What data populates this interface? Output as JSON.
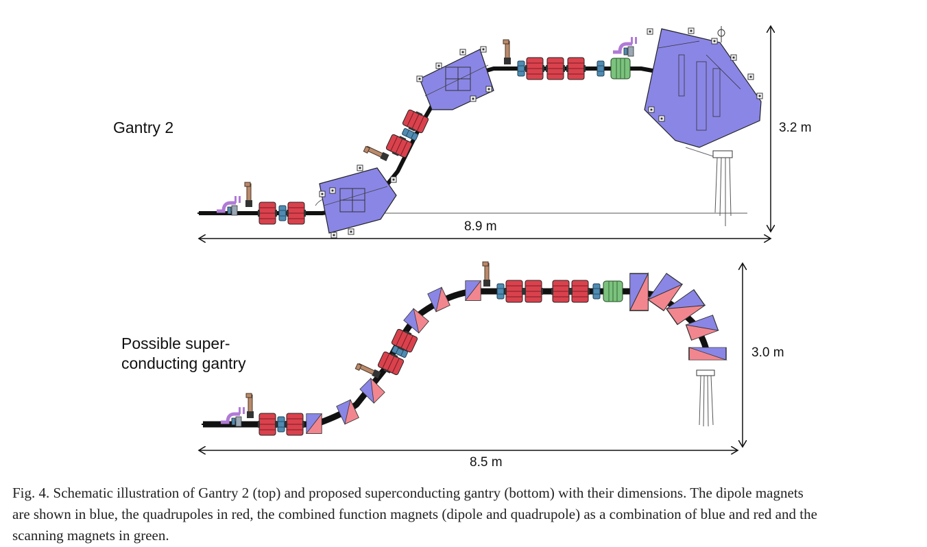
{
  "top_diagram": {
    "title": "Gantry 2",
    "width_label": "8.9 m",
    "height_label": "3.2 m"
  },
  "bottom_diagram": {
    "title_line1": "Possible super-",
    "title_line2": "conducting gantry",
    "width_label": "8.5 m",
    "height_label": "3.0 m"
  },
  "caption": {
    "line1": "Fig. 4.  Schematic illustration of Gantry 2 (top) and proposed superconducting gantry (bottom) with their dimensions. The dipole magnets",
    "line2": "are shown in blue, the quadrupoles in red, the combined function magnets (dipole and quadrupole) as a combination of blue and red and the",
    "line3": "scanning magnets in green."
  },
  "colors": {
    "dipole": "#8a86e6",
    "quadrupole": "#d9424d",
    "combined_red": "#f2868f",
    "scanning": "#7cc27e",
    "steering": "#4f8bb3",
    "kicker": "#b98a6b",
    "slit": "#b07ad6",
    "beam_pipe": "#111111"
  }
}
